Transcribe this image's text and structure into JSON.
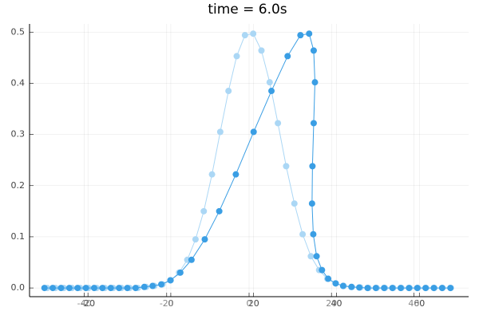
{
  "chart_data": {
    "type": "line",
    "title": "time = 6.0s",
    "markers": true,
    "xlim": [
      -34.1,
      71.9
    ],
    "xticks": [
      -20,
      0,
      20,
      40,
      60
    ],
    "x2lim": [
      -53.3,
      53.3
    ],
    "x2ticks": [
      -40,
      -20,
      0,
      20,
      40
    ],
    "ylim": [
      -0.017,
      0.516
    ],
    "yticks": [
      {
        "value": 0,
        "label": "0.0"
      },
      0.1,
      0.2,
      0.3,
      0.4,
      0.5
    ],
    "grid": true,
    "series": [
      {
        "color": "#abd7f5",
        "xaxis": "x2",
        "x": [
          -49,
          -47,
          -45,
          -43,
          -41,
          -39,
          -37,
          -35,
          -33,
          -31,
          -29,
          -27,
          -25,
          -23,
          -21,
          -19,
          -17,
          -15,
          -13,
          -11,
          -9,
          -7,
          -5,
          -3,
          -1,
          1,
          3,
          5,
          7,
          9,
          11,
          13,
          15,
          17,
          19,
          21,
          23,
          25,
          27,
          29,
          31,
          33,
          35,
          37,
          39,
          41,
          43,
          45,
          47,
          49
        ],
        "values": [
          0,
          0,
          0,
          0,
          0,
          0,
          0,
          0,
          0,
          0,
          0,
          0,
          0.002,
          0.004,
          0.007,
          0.015,
          0.03,
          0.055,
          0.095,
          0.15,
          0.222,
          0.305,
          0.385,
          0.453,
          0.494,
          0.497,
          0.464,
          0.402,
          0.322,
          0.238,
          0.165,
          0.105,
          0.062,
          0.035,
          0.018,
          0.009,
          0.004,
          0.002,
          0.001,
          0,
          0,
          0,
          0,
          0,
          0,
          0,
          0,
          0,
          0,
          0
        ]
      },
      {
        "color": "#3a9ee4",
        "xaxis": "x",
        "x": [
          -30.5,
          -28.5,
          -26.5,
          -24.5,
          -22.5,
          -20.5,
          -18.5,
          -16.5,
          -14.5,
          -12.5,
          -10.5,
          -8.5,
          -6.4,
          -4.4,
          -2.3,
          -0.1,
          2.3,
          5.0,
          8.2,
          11.7,
          15.7,
          20.0,
          24.3,
          28.2,
          31.3,
          33.4,
          34.5,
          34.8,
          34.5,
          34.2,
          34.1,
          34.4,
          35.2,
          36.5,
          38.0,
          39.8,
          41.6,
          43.6,
          45.5,
          47.5,
          49.5,
          51.5,
          53.5,
          55.5,
          57.5,
          59.5,
          61.5,
          63.5,
          65.5,
          67.5
        ],
        "values": [
          0,
          0,
          0,
          0,
          0,
          0,
          0,
          0,
          0,
          0,
          0,
          0,
          0.002,
          0.004,
          0.007,
          0.015,
          0.03,
          0.055,
          0.095,
          0.15,
          0.222,
          0.305,
          0.385,
          0.453,
          0.494,
          0.497,
          0.464,
          0.402,
          0.322,
          0.238,
          0.165,
          0.105,
          0.062,
          0.035,
          0.018,
          0.009,
          0.004,
          0.002,
          0.001,
          0,
          0,
          0,
          0,
          0,
          0,
          0,
          0,
          0,
          0,
          0
        ]
      }
    ]
  }
}
